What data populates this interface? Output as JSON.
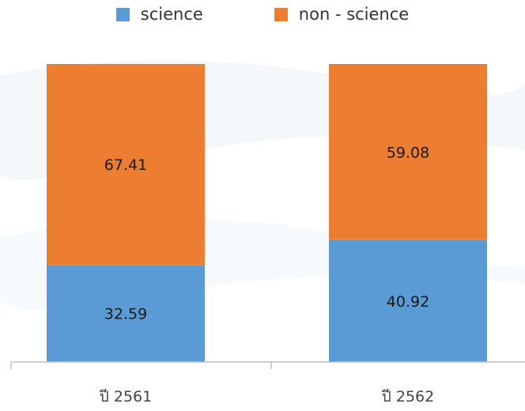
{
  "chart_data": {
    "type": "bar",
    "stacked": true,
    "categories": [
      "ปี 2561",
      "ปี 2562"
    ],
    "series": [
      {
        "name": "science",
        "values": [
          32.59,
          40.92
        ],
        "color": "#5b9bd5"
      },
      {
        "name": "non - science",
        "values": [
          67.41,
          59.08
        ],
        "color": "#ed7d31"
      }
    ],
    "ylim": [
      0,
      100
    ],
    "legend": "top-center",
    "grid": false
  }
}
